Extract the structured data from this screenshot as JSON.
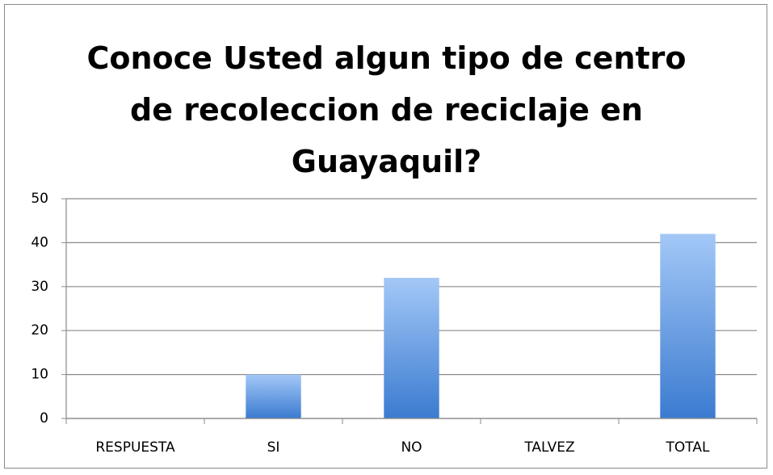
{
  "chart_data": {
    "type": "bar",
    "title": "Conoce Usted algun tipo de centro de recoleccion de reciclaje en Guayaquil?",
    "categories": [
      "RESPUESTA",
      "SI",
      "NO",
      "TALVEZ",
      "TOTAL"
    ],
    "values": [
      null,
      10,
      32,
      0,
      42
    ],
    "color": "#4a86d8",
    "ylim": [
      0,
      50
    ],
    "yticks": [
      0,
      10,
      20,
      30,
      40,
      50
    ],
    "grid": true
  }
}
